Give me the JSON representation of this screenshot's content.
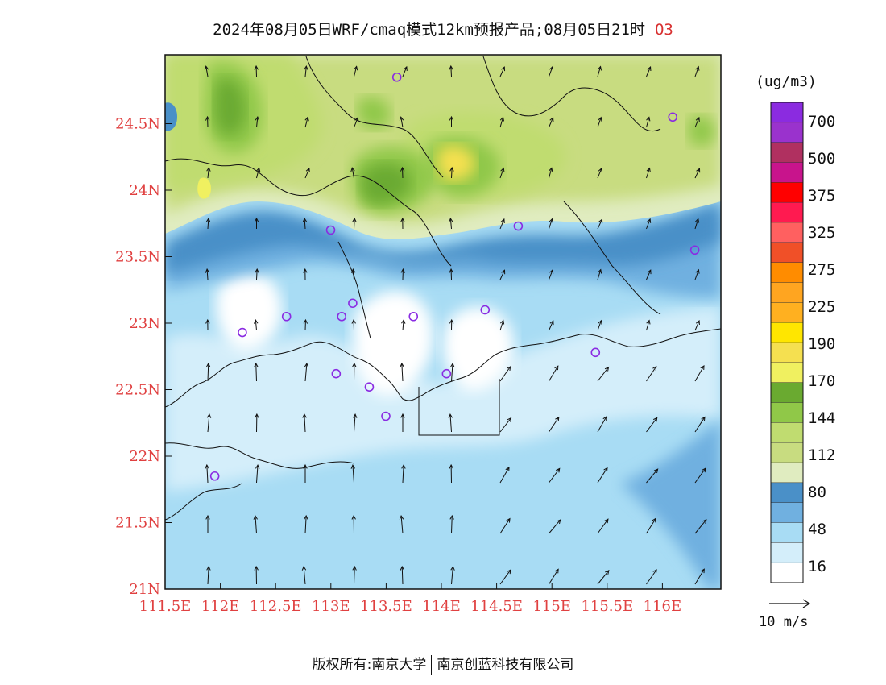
{
  "title": {
    "text": "2024年08月05日WRF/cmaq模式12km预报产品;08月05日21时",
    "pollutant": "O3"
  },
  "map": {
    "x_ticks": [
      "111.5E",
      "112E",
      "112.5E",
      "113E",
      "113.5E",
      "114E",
      "114.5E",
      "115E",
      "115.5E",
      "116E"
    ],
    "y_ticks": [
      "24.5N",
      "24N",
      "23.5N",
      "23N",
      "22.5N",
      "22N",
      "21.5N",
      "21N"
    ],
    "tick_color": "#e04040",
    "lon_range": [
      111.5,
      116.5
    ],
    "lat_range": [
      21.0,
      25.0
    ],
    "station_marker_color": "#8a2be2",
    "stations": [
      {
        "lon": 113.6,
        "lat": 24.85
      },
      {
        "lon": 116.1,
        "lat": 24.55
      },
      {
        "lon": 113.0,
        "lat": 23.7
      },
      {
        "lon": 114.7,
        "lat": 23.73
      },
      {
        "lon": 116.3,
        "lat": 23.55
      },
      {
        "lon": 113.2,
        "lat": 23.15
      },
      {
        "lon": 112.6,
        "lat": 23.05
      },
      {
        "lon": 113.1,
        "lat": 23.05
      },
      {
        "lon": 113.75,
        "lat": 23.05
      },
      {
        "lon": 114.4,
        "lat": 23.1
      },
      {
        "lon": 112.2,
        "lat": 22.93
      },
      {
        "lon": 115.4,
        "lat": 22.78
      },
      {
        "lon": 113.05,
        "lat": 22.62
      },
      {
        "lon": 114.05,
        "lat": 22.62
      },
      {
        "lon": 113.35,
        "lat": 22.52
      },
      {
        "lon": 113.5,
        "lat": 22.3
      },
      {
        "lon": 111.95,
        "lat": 21.85
      }
    ]
  },
  "legend": {
    "unit": "(ug/m3)",
    "labels": [
      "700",
      "500",
      "375",
      "325",
      "275",
      "225",
      "190",
      "170",
      "144",
      "112",
      "80",
      "48",
      "16"
    ],
    "colors": [
      "#8b2be0",
      "#9a32cd",
      "#b03060",
      "#c8148c",
      "#ff0000",
      "#ff1a50",
      "#ff6060",
      "#f05028",
      "#ff8c00",
      "#ffa520",
      "#ffb020",
      "#ffe600",
      "#f5e050",
      "#f0f060",
      "#6aaa30",
      "#90c848",
      "#c0dc70",
      "#c8dc80",
      "#e0ecc0",
      "#4a90c8",
      "#70b0e0",
      "#a8dcf4",
      "#d4eefa",
      "#ffffff"
    ]
  },
  "wind_key": {
    "label": "10 m/s"
  },
  "footer": {
    "left": "版权所有:南京大学",
    "right": "南京创蓝科技有限公司"
  }
}
